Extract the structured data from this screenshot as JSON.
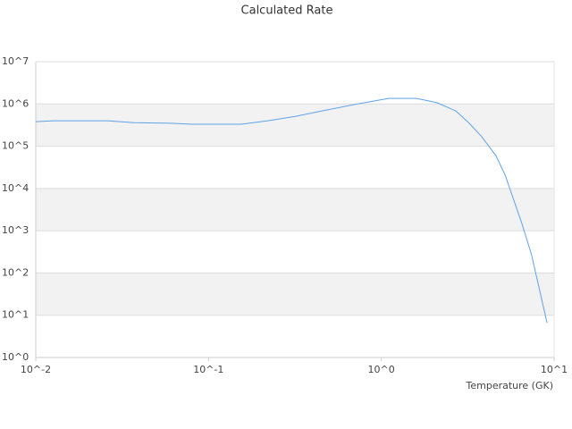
{
  "chart_data": {
    "type": "line",
    "title": "Calculated Rate",
    "x_label": "Temperature (GK)",
    "x": [
      0.01,
      0.0127,
      0.026,
      0.037,
      0.06,
      0.08,
      0.155,
      0.22,
      0.32,
      0.45,
      0.73,
      1.1,
      1.6,
      2.1,
      2.7,
      3.2,
      3.8,
      4.6,
      5.2,
      6.5,
      7.4,
      9.1
    ],
    "series": [
      {
        "color": "#5ea3ea",
        "values": [
          380000,
          400000,
          400000,
          360000,
          350000,
          330000,
          330000,
          400000,
          510000,
          680000,
          1000000,
          1350000,
          1350000,
          1070000,
          680000,
          360000,
          170000,
          60000,
          21000,
          1500,
          270,
          6.6
        ]
      }
    ],
    "xscale": "log",
    "yscale": "log",
    "xlim": [
      0.01,
      10
    ],
    "ylim": [
      1,
      10000000
    ],
    "xticks": [
      {
        "value": 0.01,
        "label": "10^-2"
      },
      {
        "value": 0.1,
        "label": "10^-1"
      },
      {
        "value": 1,
        "label": "10^0"
      },
      {
        "value": 10,
        "label": "10^1"
      }
    ],
    "yticks": [
      {
        "value": 1,
        "label": "10^0"
      },
      {
        "value": 10,
        "label": "10^1"
      },
      {
        "value": 100,
        "label": "10^2"
      },
      {
        "value": 1000,
        "label": "10^3"
      },
      {
        "value": 10000,
        "label": "10^4"
      },
      {
        "value": 100000,
        "label": "10^5"
      },
      {
        "value": 1000000,
        "label": "10^6"
      },
      {
        "value": 10000000,
        "label": "10^7"
      }
    ],
    "grid": true,
    "band_color": "#f2f2f2"
  }
}
